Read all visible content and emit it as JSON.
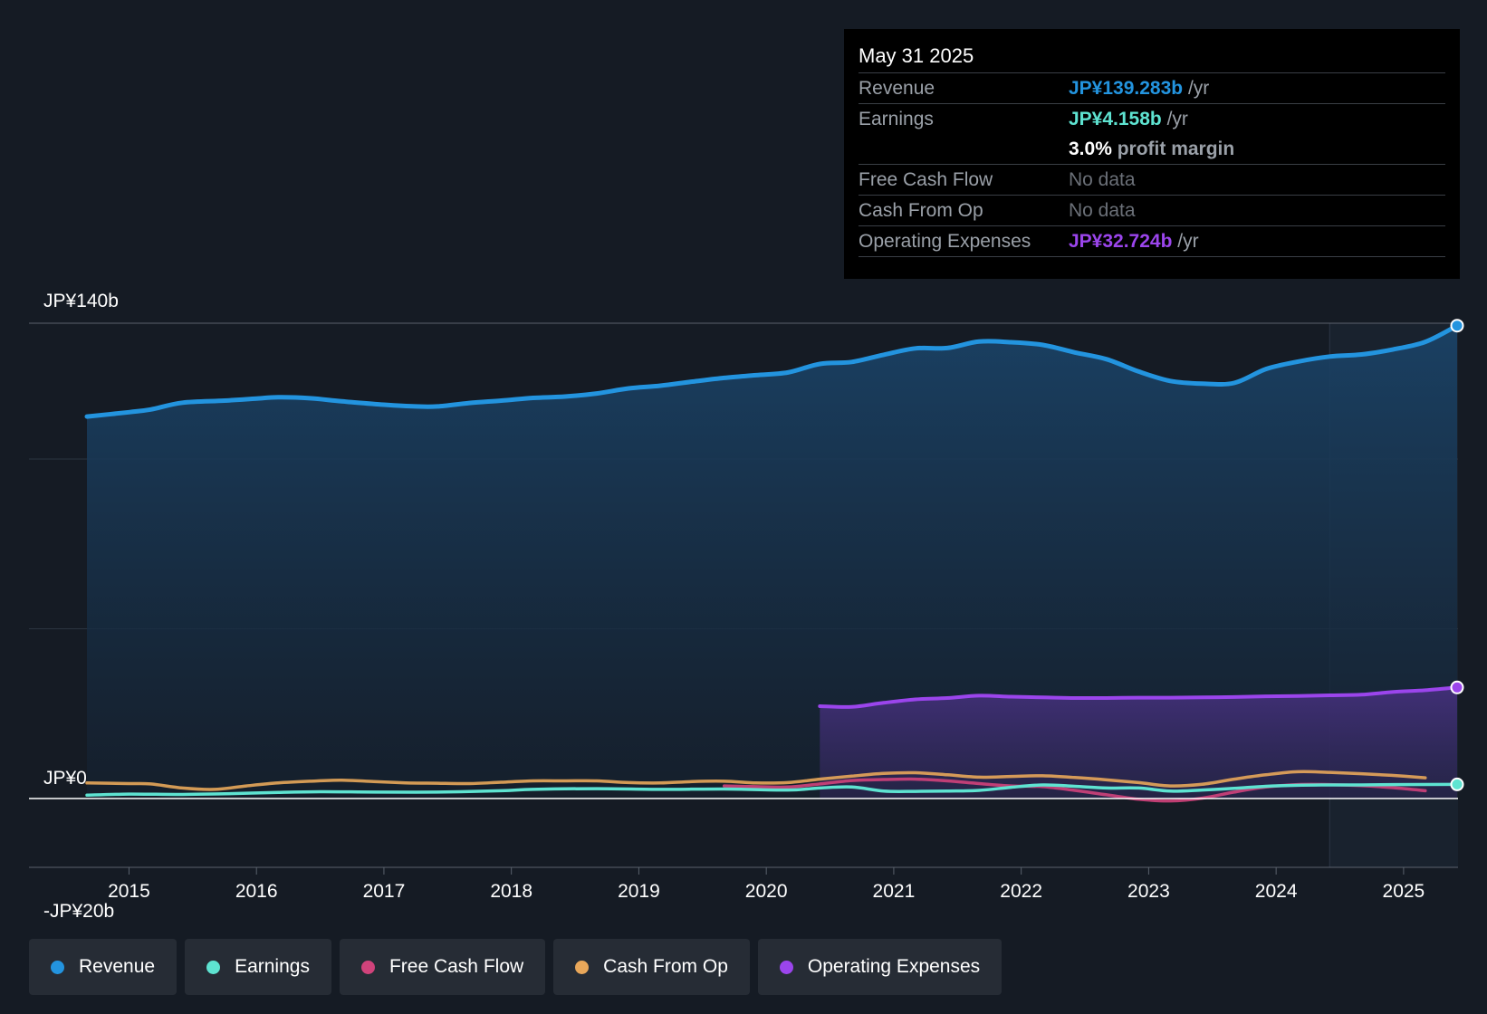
{
  "colors": {
    "revenue": "#2394df",
    "earnings": "#5ee3d1",
    "free_cash_flow": "#d0437b",
    "cash_from_op": "#e8a75a",
    "operating_expenses": "#9b45ec"
  },
  "tooltip": {
    "date": "May 31 2025",
    "rows": [
      {
        "label": "Revenue",
        "value": "JP¥139.283b",
        "unit": " /yr"
      },
      {
        "label": "Earnings",
        "value": "JP¥4.158b",
        "unit": " /yr"
      },
      {
        "label": "",
        "value": "3.0%",
        "unit": " profit margin"
      },
      {
        "label": "Free Cash Flow",
        "value": "No data",
        "unit": ""
      },
      {
        "label": "Cash From Op",
        "value": "No data",
        "unit": ""
      },
      {
        "label": "Operating Expenses",
        "value": "JP¥32.724b",
        "unit": " /yr"
      }
    ]
  },
  "legend": [
    {
      "key": "revenue",
      "label": "Revenue"
    },
    {
      "key": "earnings",
      "label": "Earnings"
    },
    {
      "key": "free_cash_flow",
      "label": "Free Cash Flow"
    },
    {
      "key": "cash_from_op",
      "label": "Cash From Op"
    },
    {
      "key": "operating_expenses",
      "label": "Operating Expenses"
    }
  ],
  "chart_data": {
    "type": "area",
    "title": "",
    "xlabel": "",
    "ylabel": "",
    "ylim": [
      -20,
      140
    ],
    "xlim": [
      2014.67,
      2025.42
    ],
    "y_tick_labels": [
      {
        "value": 140,
        "label": "JP¥140b"
      },
      {
        "value": 0,
        "label": "JP¥0"
      },
      {
        "value": -20,
        "label": "-JP¥20b"
      }
    ],
    "gridlines": [
      140,
      100,
      50,
      0
    ],
    "x_ticks": [
      2015,
      2016,
      2017,
      2018,
      2019,
      2020,
      2021,
      2022,
      2023,
      2024,
      2025
    ],
    "x_tick_labels": [
      "2015",
      "2016",
      "2017",
      "2018",
      "2019",
      "2020",
      "2021",
      "2022",
      "2023",
      "2024",
      "2025"
    ],
    "forecast_start": 2024.42,
    "series": [
      {
        "key": "revenue",
        "name": "Revenue",
        "filled": true,
        "points": [
          [
            2014.67,
            112.5
          ],
          [
            2015.0,
            113.8
          ],
          [
            2015.17,
            114.6
          ],
          [
            2015.42,
            116.6
          ],
          [
            2015.75,
            117.2
          ],
          [
            2016.0,
            117.8
          ],
          [
            2016.17,
            118.2
          ],
          [
            2016.42,
            117.9
          ],
          [
            2016.67,
            117.0
          ],
          [
            2017.0,
            116.0
          ],
          [
            2017.25,
            115.5
          ],
          [
            2017.42,
            115.5
          ],
          [
            2017.67,
            116.5
          ],
          [
            2017.92,
            117.2
          ],
          [
            2018.17,
            118.0
          ],
          [
            2018.42,
            118.4
          ],
          [
            2018.67,
            119.3
          ],
          [
            2018.92,
            120.8
          ],
          [
            2019.17,
            121.6
          ],
          [
            2019.42,
            122.8
          ],
          [
            2019.67,
            123.9
          ],
          [
            2019.92,
            124.7
          ],
          [
            2020.17,
            125.5
          ],
          [
            2020.42,
            128.0
          ],
          [
            2020.67,
            128.6
          ],
          [
            2020.92,
            130.7
          ],
          [
            2021.17,
            132.6
          ],
          [
            2021.42,
            132.7
          ],
          [
            2021.67,
            134.6
          ],
          [
            2021.92,
            134.4
          ],
          [
            2022.17,
            133.6
          ],
          [
            2022.42,
            131.4
          ],
          [
            2022.67,
            129.4
          ],
          [
            2022.92,
            125.8
          ],
          [
            2023.17,
            123.0
          ],
          [
            2023.42,
            122.2
          ],
          [
            2023.67,
            122.4
          ],
          [
            2023.92,
            126.5
          ],
          [
            2024.17,
            128.7
          ],
          [
            2024.42,
            130.2
          ],
          [
            2024.67,
            130.8
          ],
          [
            2024.92,
            132.3
          ],
          [
            2025.17,
            134.5
          ],
          [
            2025.42,
            139.28
          ]
        ]
      },
      {
        "key": "operating_expenses",
        "name": "Operating Expenses",
        "filled": true,
        "points": [
          [
            2020.42,
            27.2
          ],
          [
            2020.67,
            27.0
          ],
          [
            2020.92,
            28.2
          ],
          [
            2021.17,
            29.2
          ],
          [
            2021.42,
            29.6
          ],
          [
            2021.67,
            30.3
          ],
          [
            2021.92,
            30.0
          ],
          [
            2022.17,
            29.8
          ],
          [
            2022.42,
            29.6
          ],
          [
            2022.67,
            29.6
          ],
          [
            2022.92,
            29.7
          ],
          [
            2023.17,
            29.7
          ],
          [
            2023.42,
            29.8
          ],
          [
            2023.67,
            29.9
          ],
          [
            2023.92,
            30.1
          ],
          [
            2024.17,
            30.2
          ],
          [
            2024.42,
            30.4
          ],
          [
            2024.67,
            30.6
          ],
          [
            2024.92,
            31.4
          ],
          [
            2025.17,
            31.9
          ],
          [
            2025.42,
            32.72
          ]
        ]
      },
      {
        "key": "cash_from_op",
        "name": "Cash From Op",
        "filled": false,
        "points": [
          [
            2014.67,
            4.6
          ],
          [
            2015.0,
            4.4
          ],
          [
            2015.17,
            4.3
          ],
          [
            2015.42,
            3.1
          ],
          [
            2015.67,
            2.7
          ],
          [
            2015.92,
            3.7
          ],
          [
            2016.17,
            4.6
          ],
          [
            2016.42,
            5.1
          ],
          [
            2016.67,
            5.4
          ],
          [
            2016.92,
            5.0
          ],
          [
            2017.17,
            4.6
          ],
          [
            2017.42,
            4.5
          ],
          [
            2017.67,
            4.4
          ],
          [
            2017.92,
            4.8
          ],
          [
            2018.17,
            5.2
          ],
          [
            2018.42,
            5.2
          ],
          [
            2018.67,
            5.2
          ],
          [
            2018.92,
            4.7
          ],
          [
            2019.17,
            4.6
          ],
          [
            2019.42,
            5.0
          ],
          [
            2019.67,
            5.1
          ],
          [
            2019.92,
            4.6
          ],
          [
            2020.17,
            4.7
          ],
          [
            2020.42,
            5.7
          ],
          [
            2020.67,
            6.6
          ],
          [
            2020.92,
            7.4
          ],
          [
            2021.17,
            7.6
          ],
          [
            2021.42,
            7.0
          ],
          [
            2021.67,
            6.3
          ],
          [
            2021.92,
            6.5
          ],
          [
            2022.17,
            6.7
          ],
          [
            2022.42,
            6.2
          ],
          [
            2022.67,
            5.5
          ],
          [
            2022.92,
            4.7
          ],
          [
            2023.17,
            3.7
          ],
          [
            2023.42,
            4.2
          ],
          [
            2023.67,
            5.7
          ],
          [
            2023.92,
            7.0
          ],
          [
            2024.17,
            7.9
          ],
          [
            2024.42,
            7.7
          ],
          [
            2024.67,
            7.3
          ],
          [
            2024.92,
            6.8
          ],
          [
            2025.17,
            6.1
          ]
        ]
      },
      {
        "key": "free_cash_flow",
        "name": "Free Cash Flow",
        "filled": false,
        "points": [
          [
            2019.67,
            3.7
          ],
          [
            2019.92,
            3.5
          ],
          [
            2020.17,
            3.4
          ],
          [
            2020.42,
            4.3
          ],
          [
            2020.67,
            5.3
          ],
          [
            2020.92,
            5.6
          ],
          [
            2021.17,
            5.7
          ],
          [
            2021.42,
            5.2
          ],
          [
            2021.67,
            4.4
          ],
          [
            2021.92,
            3.7
          ],
          [
            2022.17,
            3.5
          ],
          [
            2022.42,
            2.4
          ],
          [
            2022.67,
            1.1
          ],
          [
            2022.92,
            -0.2
          ],
          [
            2023.17,
            -0.7
          ],
          [
            2023.42,
            0.1
          ],
          [
            2023.67,
            1.9
          ],
          [
            2023.92,
            3.4
          ],
          [
            2024.17,
            4.1
          ],
          [
            2024.42,
            4.1
          ],
          [
            2024.67,
            3.8
          ],
          [
            2024.92,
            3.2
          ],
          [
            2025.17,
            2.3
          ]
        ]
      },
      {
        "key": "earnings",
        "name": "Earnings",
        "filled": false,
        "points": [
          [
            2014.67,
            1.0
          ],
          [
            2015.0,
            1.3
          ],
          [
            2015.42,
            1.2
          ],
          [
            2015.75,
            1.4
          ],
          [
            2016.17,
            1.8
          ],
          [
            2016.5,
            2.0
          ],
          [
            2016.92,
            1.9
          ],
          [
            2017.42,
            1.9
          ],
          [
            2017.92,
            2.3
          ],
          [
            2018.17,
            2.7
          ],
          [
            2018.67,
            2.9
          ],
          [
            2019.17,
            2.7
          ],
          [
            2019.67,
            2.8
          ],
          [
            2020.17,
            2.5
          ],
          [
            2020.42,
            3.1
          ],
          [
            2020.67,
            3.4
          ],
          [
            2020.92,
            2.2
          ],
          [
            2021.17,
            2.1
          ],
          [
            2021.42,
            2.2
          ],
          [
            2021.67,
            2.4
          ],
          [
            2021.92,
            3.3
          ],
          [
            2022.17,
            4.0
          ],
          [
            2022.42,
            3.6
          ],
          [
            2022.67,
            3.1
          ],
          [
            2022.92,
            3.1
          ],
          [
            2023.17,
            2.2
          ],
          [
            2023.42,
            2.5
          ],
          [
            2023.67,
            3.0
          ],
          [
            2023.92,
            3.6
          ],
          [
            2024.17,
            3.9
          ],
          [
            2024.42,
            4.0
          ],
          [
            2024.67,
            4.0
          ],
          [
            2024.92,
            4.1
          ],
          [
            2025.42,
            4.16
          ]
        ]
      }
    ]
  }
}
